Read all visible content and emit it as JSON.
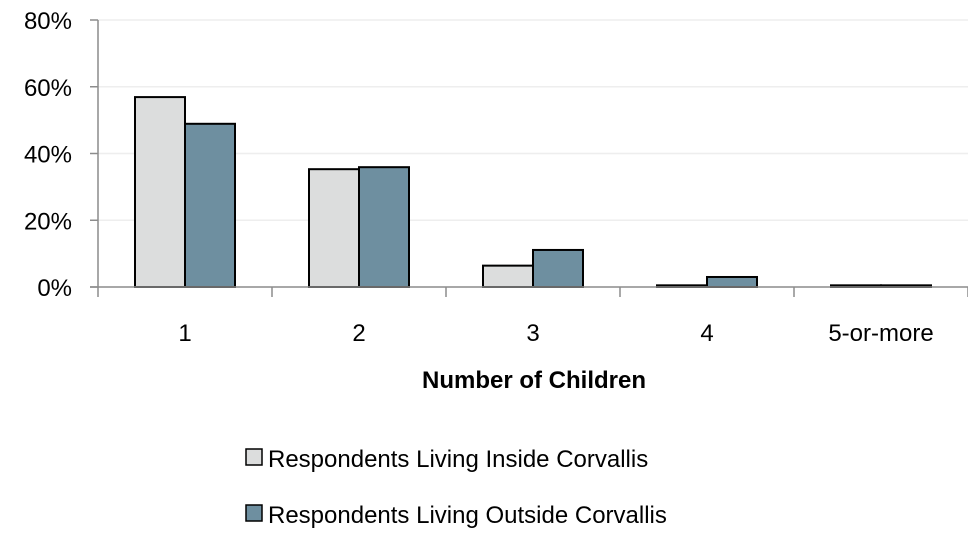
{
  "chart_data": {
    "type": "bar",
    "title": "",
    "xlabel": "Number of Children",
    "ylabel": "",
    "categories": [
      "1",
      "2",
      "3",
      "4",
      "5-or-more"
    ],
    "series": [
      {
        "name": "Respondents Living Inside Corvallis",
        "values": [
          56.9,
          35.3,
          6.4,
          0.5,
          0.5
        ],
        "color": "#dcdddd"
      },
      {
        "name": "Respondents Living Outside Corvallis",
        "values": [
          48.9,
          35.9,
          11.1,
          3.0,
          0.5
        ],
        "color": "#6e8fa0"
      }
    ],
    "ylim": [
      0,
      80
    ],
    "yticks": [
      0,
      20,
      40,
      60,
      80
    ],
    "ytick_labels": [
      "0%",
      "20%",
      "40%",
      "60%",
      "80%"
    ],
    "grid": true,
    "legend": "bottom"
  }
}
